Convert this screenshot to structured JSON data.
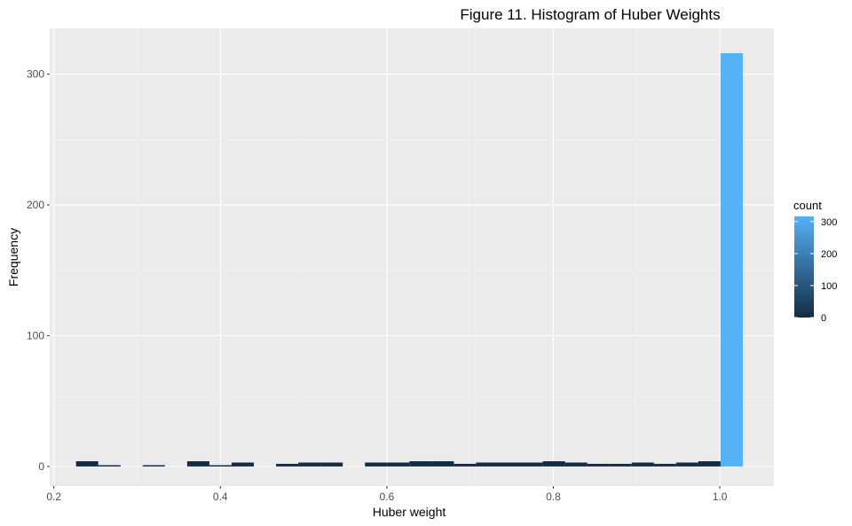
{
  "chart_data": {
    "type": "bar",
    "title": "Figure 11. Histogram of Huber Weights",
    "xlabel": "Huber weight",
    "ylabel": "Frequency",
    "xlim": [
      0.195,
      1.065
    ],
    "ylim": [
      -15,
      335
    ],
    "x_ticks": [
      0.2,
      0.4,
      0.6,
      0.8,
      1.0
    ],
    "x_tick_labels": [
      "0.2",
      "0.4",
      "0.6",
      "0.8",
      "1.0"
    ],
    "y_ticks": [
      0,
      100,
      200,
      300
    ],
    "y_tick_labels": [
      "0",
      "100",
      "200",
      "300"
    ],
    "bin_width": 0.0267,
    "bins": [
      {
        "x": 0.24,
        "count": 4
      },
      {
        "x": 0.2667,
        "count": 1
      },
      {
        "x": 0.2934,
        "count": 0
      },
      {
        "x": 0.3201,
        "count": 1
      },
      {
        "x": 0.3468,
        "count": 0
      },
      {
        "x": 0.3735,
        "count": 4
      },
      {
        "x": 0.4002,
        "count": 1
      },
      {
        "x": 0.4269,
        "count": 3
      },
      {
        "x": 0.4536,
        "count": 0
      },
      {
        "x": 0.4803,
        "count": 2
      },
      {
        "x": 0.507,
        "count": 3
      },
      {
        "x": 0.5337,
        "count": 3
      },
      {
        "x": 0.5604,
        "count": 0
      },
      {
        "x": 0.5871,
        "count": 3
      },
      {
        "x": 0.6138,
        "count": 3
      },
      {
        "x": 0.6405,
        "count": 4
      },
      {
        "x": 0.6672,
        "count": 4
      },
      {
        "x": 0.6939,
        "count": 2
      },
      {
        "x": 0.7206,
        "count": 3
      },
      {
        "x": 0.7473,
        "count": 3
      },
      {
        "x": 0.774,
        "count": 3
      },
      {
        "x": 0.8007,
        "count": 4
      },
      {
        "x": 0.8274,
        "count": 3
      },
      {
        "x": 0.8541,
        "count": 2
      },
      {
        "x": 0.8808,
        "count": 2
      },
      {
        "x": 0.9075,
        "count": 3
      },
      {
        "x": 0.9342,
        "count": 2
      },
      {
        "x": 0.9609,
        "count": 3
      },
      {
        "x": 0.9876,
        "count": 4
      },
      {
        "x": 1.0143,
        "count": 316
      }
    ],
    "legend": {
      "title": "count",
      "labels": [
        "300",
        "200",
        "100",
        "0"
      ],
      "values": [
        300,
        200,
        100,
        0
      ],
      "range": [
        0,
        316
      ],
      "low_color": "#132B43",
      "high_color": "#56B1F7",
      "position": "right"
    },
    "panel_background": "#EBEBEB",
    "grid": true
  }
}
